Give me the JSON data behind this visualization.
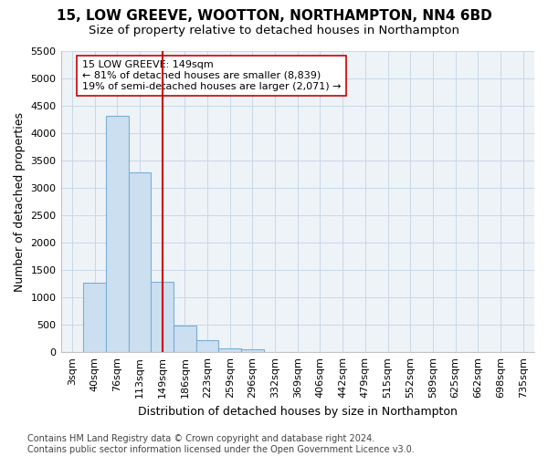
{
  "title": "15, LOW GREEVE, WOOTTON, NORTHAMPTON, NN4 6BD",
  "subtitle": "Size of property relative to detached houses in Northampton",
  "xlabel": "Distribution of detached houses by size in Northampton",
  "ylabel": "Number of detached properties",
  "categories": [
    "3sqm",
    "40sqm",
    "76sqm",
    "113sqm",
    "149sqm",
    "186sqm",
    "223sqm",
    "259sqm",
    "296sqm",
    "332sqm",
    "369sqm",
    "406sqm",
    "442sqm",
    "479sqm",
    "515sqm",
    "552sqm",
    "589sqm",
    "625sqm",
    "662sqm",
    "698sqm",
    "735sqm"
  ],
  "values": [
    0,
    1270,
    4330,
    3290,
    1280,
    480,
    215,
    75,
    55,
    0,
    0,
    0,
    0,
    0,
    0,
    0,
    0,
    0,
    0,
    0,
    0
  ],
  "bar_color": "#ccdff0",
  "bar_edge_color": "#7aafd4",
  "property_line_index": 4,
  "property_line_color": "#cc0000",
  "annotation_text": "15 LOW GREEVE: 149sqm\n← 81% of detached houses are smaller (8,839)\n19% of semi-detached houses are larger (2,071) →",
  "annotation_box_color": "#ffffff",
  "annotation_box_edge_color": "#cc0000",
  "ylim_max": 5500,
  "yticks": [
    0,
    500,
    1000,
    1500,
    2000,
    2500,
    3000,
    3500,
    4000,
    4500,
    5000,
    5500
  ],
  "grid_color": "#c8d8e8",
  "background_color": "#eef3f8",
  "footer_text": "Contains HM Land Registry data © Crown copyright and database right 2024.\nContains public sector information licensed under the Open Government Licence v3.0.",
  "title_fontsize": 11,
  "subtitle_fontsize": 9.5,
  "axis_label_fontsize": 9,
  "tick_fontsize": 8,
  "annotation_fontsize": 8,
  "footer_fontsize": 7
}
